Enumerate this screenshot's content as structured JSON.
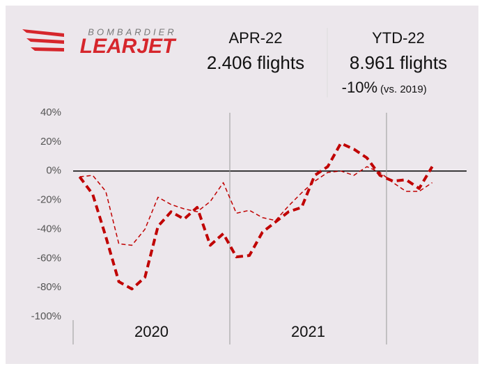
{
  "header": {
    "brand_top": "BOMBARDIER",
    "brand": "LEARJET",
    "month_label": "APR-22",
    "month_value": "2.406 flights",
    "ytd_label": "YTD-22",
    "ytd_value": "8.961 flights",
    "ytd_change": "-10%",
    "ytd_change_note": "(vs. 2019)"
  },
  "chart_data": {
    "type": "line",
    "categories": [
      null,
      null,
      null,
      null,
      null,
      null,
      null,
      null,
      null,
      null,
      null,
      null,
      null,
      null,
      null,
      null,
      null,
      null,
      null,
      null,
      null,
      null,
      null,
      null,
      null,
      null,
      null,
      null
    ],
    "year_labels": [
      "2020",
      "2021"
    ],
    "series": [
      {
        "color": "#c00000",
        "width": 4,
        "values": [
          -4,
          -16,
          -45,
          -76,
          -81,
          -73,
          -38,
          -28,
          -33,
          -25,
          -51,
          -43,
          -59,
          -58,
          -42,
          -35,
          -28,
          -25,
          -3,
          3,
          19,
          15,
          9,
          -3,
          -7,
          -6,
          -12,
          3
        ]
      },
      {
        "color": "#c00000",
        "width": 1.5,
        "values": [
          -4,
          -3,
          -14,
          -50,
          -51,
          -40,
          -18,
          -23,
          -26,
          -28,
          -21,
          -8,
          -29,
          -27,
          -32,
          -34,
          -24,
          -15,
          -7,
          -1,
          0,
          -3,
          3,
          -1,
          -8,
          -14,
          -14,
          -8
        ]
      }
    ],
    "ylim": [
      -100,
      40
    ],
    "yticks": [
      {
        "value": 40,
        "label": "40%"
      },
      {
        "value": 20,
        "label": "20%"
      },
      {
        "value": 0,
        "label": "0%"
      },
      {
        "value": -20,
        "label": "-20%"
      },
      {
        "value": -40,
        "label": "-40%"
      },
      {
        "value": -60,
        "label": "-60%"
      },
      {
        "value": -80,
        "label": "-80%"
      },
      {
        "value": -100,
        "label": "-100%"
      }
    ]
  }
}
